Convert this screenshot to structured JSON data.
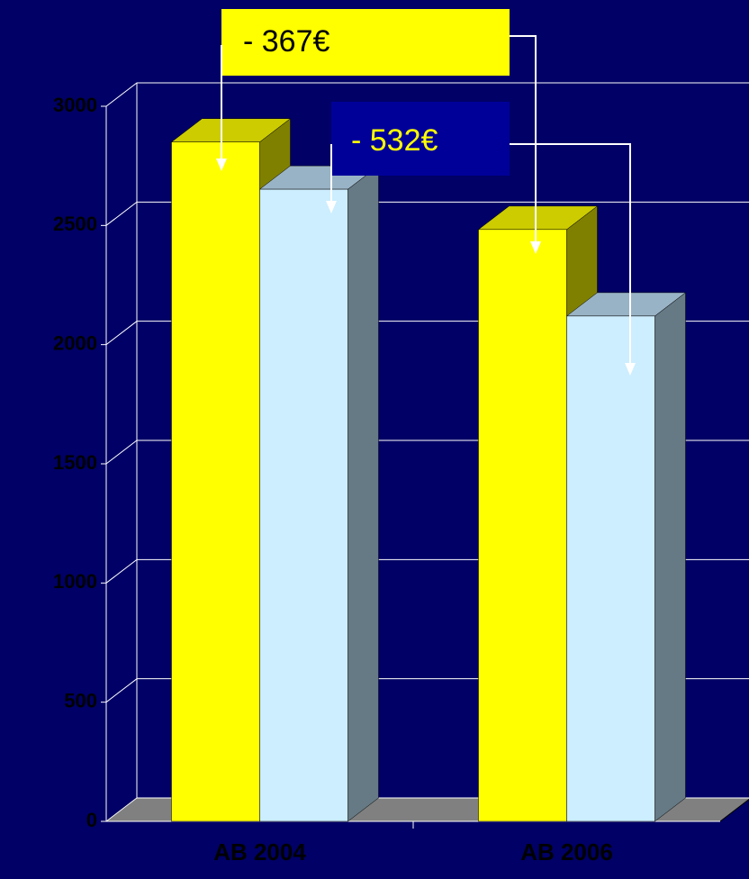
{
  "chart_data": {
    "type": "bar3d",
    "categories": [
      "AB 2004",
      "AB 2006"
    ],
    "series": [
      {
        "color": "#ffff00",
        "top_color": "#cccc00",
        "side_color": "#808000",
        "values": [
          2850,
          2483
        ]
      },
      {
        "color": "#cceeff",
        "top_color": "#99b3c6",
        "side_color": "#667a85",
        "values": [
          2652,
          2120
        ]
      }
    ],
    "ylim": [
      0,
      3000
    ],
    "yticks": [
      0,
      500,
      1000,
      1500,
      2000,
      2500,
      3000
    ],
    "grid": true,
    "annotations": [
      "- 367€",
      "- 532€"
    ]
  }
}
